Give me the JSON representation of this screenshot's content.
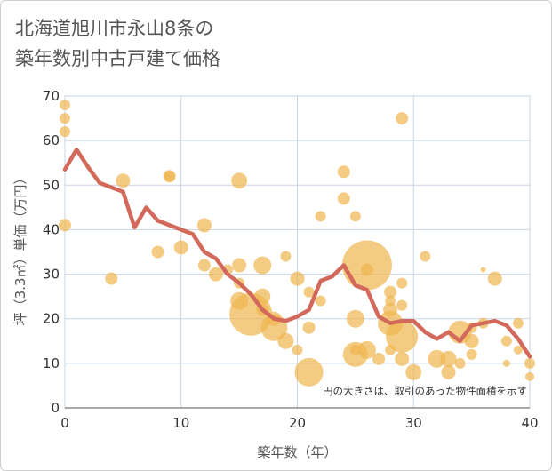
{
  "title": {
    "line1": "北海道旭川市永山8条の",
    "line2": "築年数別中古戸建て価格"
  },
  "chart_data": {
    "type": "scatter",
    "xlabel": "築年数（年）",
    "ylabel": "坪（3.3㎡）単価（万円）",
    "xlim": [
      0,
      40
    ],
    "ylim": [
      0,
      70
    ],
    "xticks": [
      0,
      10,
      20,
      30,
      40
    ],
    "yticks": [
      0,
      10,
      20,
      30,
      40,
      50,
      60,
      70
    ],
    "grid": true,
    "note": "円の大きさは、取引のあった物件面積を示す",
    "colors": {
      "bubble": "#f0b54f",
      "line": "#d2695a",
      "grid": "#c8d4e6"
    },
    "bubbles": [
      {
        "x": 0,
        "y": 68,
        "r": 6
      },
      {
        "x": 0,
        "y": 65,
        "r": 6
      },
      {
        "x": 0,
        "y": 62,
        "r": 6
      },
      {
        "x": 0,
        "y": 41,
        "r": 7
      },
      {
        "x": 4,
        "y": 29,
        "r": 7
      },
      {
        "x": 5,
        "y": 51,
        "r": 8
      },
      {
        "x": 8,
        "y": 35,
        "r": 7
      },
      {
        "x": 9,
        "y": 52,
        "r": 7
      },
      {
        "x": 9,
        "y": 52,
        "r": 6
      },
      {
        "x": 10,
        "y": 36,
        "r": 8
      },
      {
        "x": 12,
        "y": 41,
        "r": 8
      },
      {
        "x": 12,
        "y": 32,
        "r": 7
      },
      {
        "x": 13,
        "y": 30,
        "r": 8
      },
      {
        "x": 14,
        "y": 31,
        "r": 6
      },
      {
        "x": 15,
        "y": 51,
        "r": 9
      },
      {
        "x": 15,
        "y": 32,
        "r": 8
      },
      {
        "x": 15,
        "y": 28,
        "r": 6
      },
      {
        "x": 15,
        "y": 24,
        "r": 10
      },
      {
        "x": 16,
        "y": 21,
        "r": 24
      },
      {
        "x": 17,
        "y": 32,
        "r": 10
      },
      {
        "x": 17,
        "y": 25,
        "r": 9
      },
      {
        "x": 17,
        "y": 22,
        "r": 7
      },
      {
        "x": 18,
        "y": 20,
        "r": 8
      },
      {
        "x": 18,
        "y": 18,
        "r": 15
      },
      {
        "x": 19,
        "y": 34,
        "r": 6
      },
      {
        "x": 19,
        "y": 15,
        "r": 9
      },
      {
        "x": 20,
        "y": 29,
        "r": 8
      },
      {
        "x": 20,
        "y": 13,
        "r": 6
      },
      {
        "x": 21,
        "y": 26,
        "r": 6
      },
      {
        "x": 21,
        "y": 18,
        "r": 7
      },
      {
        "x": 21,
        "y": 8,
        "r": 16
      },
      {
        "x": 22,
        "y": 43,
        "r": 6
      },
      {
        "x": 22,
        "y": 24,
        "r": 6
      },
      {
        "x": 24,
        "y": 53,
        "r": 7
      },
      {
        "x": 24,
        "y": 47,
        "r": 7
      },
      {
        "x": 25,
        "y": 43,
        "r": 6
      },
      {
        "x": 25,
        "y": 20,
        "r": 10
      },
      {
        "x": 25,
        "y": 12,
        "r": 14
      },
      {
        "x": 25,
        "y": 13,
        "r": 6
      },
      {
        "x": 26,
        "y": 32,
        "r": 28
      },
      {
        "x": 26,
        "y": 31,
        "r": 7
      },
      {
        "x": 26,
        "y": 13,
        "r": 10
      },
      {
        "x": 27,
        "y": 11,
        "r": 7
      },
      {
        "x": 28,
        "y": 26,
        "r": 7
      },
      {
        "x": 28,
        "y": 24,
        "r": 6
      },
      {
        "x": 28,
        "y": 22,
        "r": 8
      },
      {
        "x": 28,
        "y": 19,
        "r": 14
      },
      {
        "x": 28,
        "y": 13,
        "r": 6
      },
      {
        "x": 29,
        "y": 65,
        "r": 7
      },
      {
        "x": 29,
        "y": 28,
        "r": 6
      },
      {
        "x": 29,
        "y": 23,
        "r": 6
      },
      {
        "x": 29,
        "y": 16,
        "r": 18
      },
      {
        "x": 29,
        "y": 11,
        "r": 8
      },
      {
        "x": 30,
        "y": 8,
        "r": 9
      },
      {
        "x": 31,
        "y": 34,
        "r": 6
      },
      {
        "x": 32,
        "y": 11,
        "r": 10
      },
      {
        "x": 33,
        "y": 11,
        "r": 9
      },
      {
        "x": 33,
        "y": 8,
        "r": 8
      },
      {
        "x": 34,
        "y": 17,
        "r": 13
      },
      {
        "x": 34,
        "y": 10,
        "r": 6
      },
      {
        "x": 35,
        "y": 15,
        "r": 8
      },
      {
        "x": 35,
        "y": 18,
        "r": 6
      },
      {
        "x": 35,
        "y": 12,
        "r": 6
      },
      {
        "x": 36,
        "y": 31,
        "r": 3
      },
      {
        "x": 36,
        "y": 19,
        "r": 6
      },
      {
        "x": 37,
        "y": 29,
        "r": 8
      },
      {
        "x": 38,
        "y": 15,
        "r": 6
      },
      {
        "x": 38,
        "y": 10,
        "r": 4
      },
      {
        "x": 39,
        "y": 19,
        "r": 6
      },
      {
        "x": 39,
        "y": 13,
        "r": 5
      },
      {
        "x": 40,
        "y": 10,
        "r": 6
      },
      {
        "x": 40,
        "y": 7,
        "r": 5
      }
    ],
    "series": [
      {
        "x": [
          0,
          1,
          2,
          3,
          4,
          5,
          6,
          7,
          8,
          9,
          10,
          11,
          12,
          13,
          14,
          15,
          16,
          17,
          18,
          19,
          20,
          21,
          22,
          23,
          24,
          25,
          26,
          27,
          28,
          29,
          30,
          31,
          32,
          33,
          34,
          35,
          36,
          37,
          38,
          39,
          40
        ],
        "values": [
          53.5,
          58,
          54,
          50.5,
          49.5,
          48.5,
          40.5,
          45,
          42,
          41,
          40,
          39,
          35,
          33.5,
          30,
          28,
          25.5,
          22,
          20,
          19.5,
          20.5,
          22,
          28.5,
          29.5,
          32,
          27.5,
          26.5,
          20.5,
          19,
          19.5,
          19.5,
          17,
          15.5,
          17,
          15,
          18.5,
          19,
          19.5,
          18.5,
          15.5,
          11.5
        ]
      }
    ]
  }
}
